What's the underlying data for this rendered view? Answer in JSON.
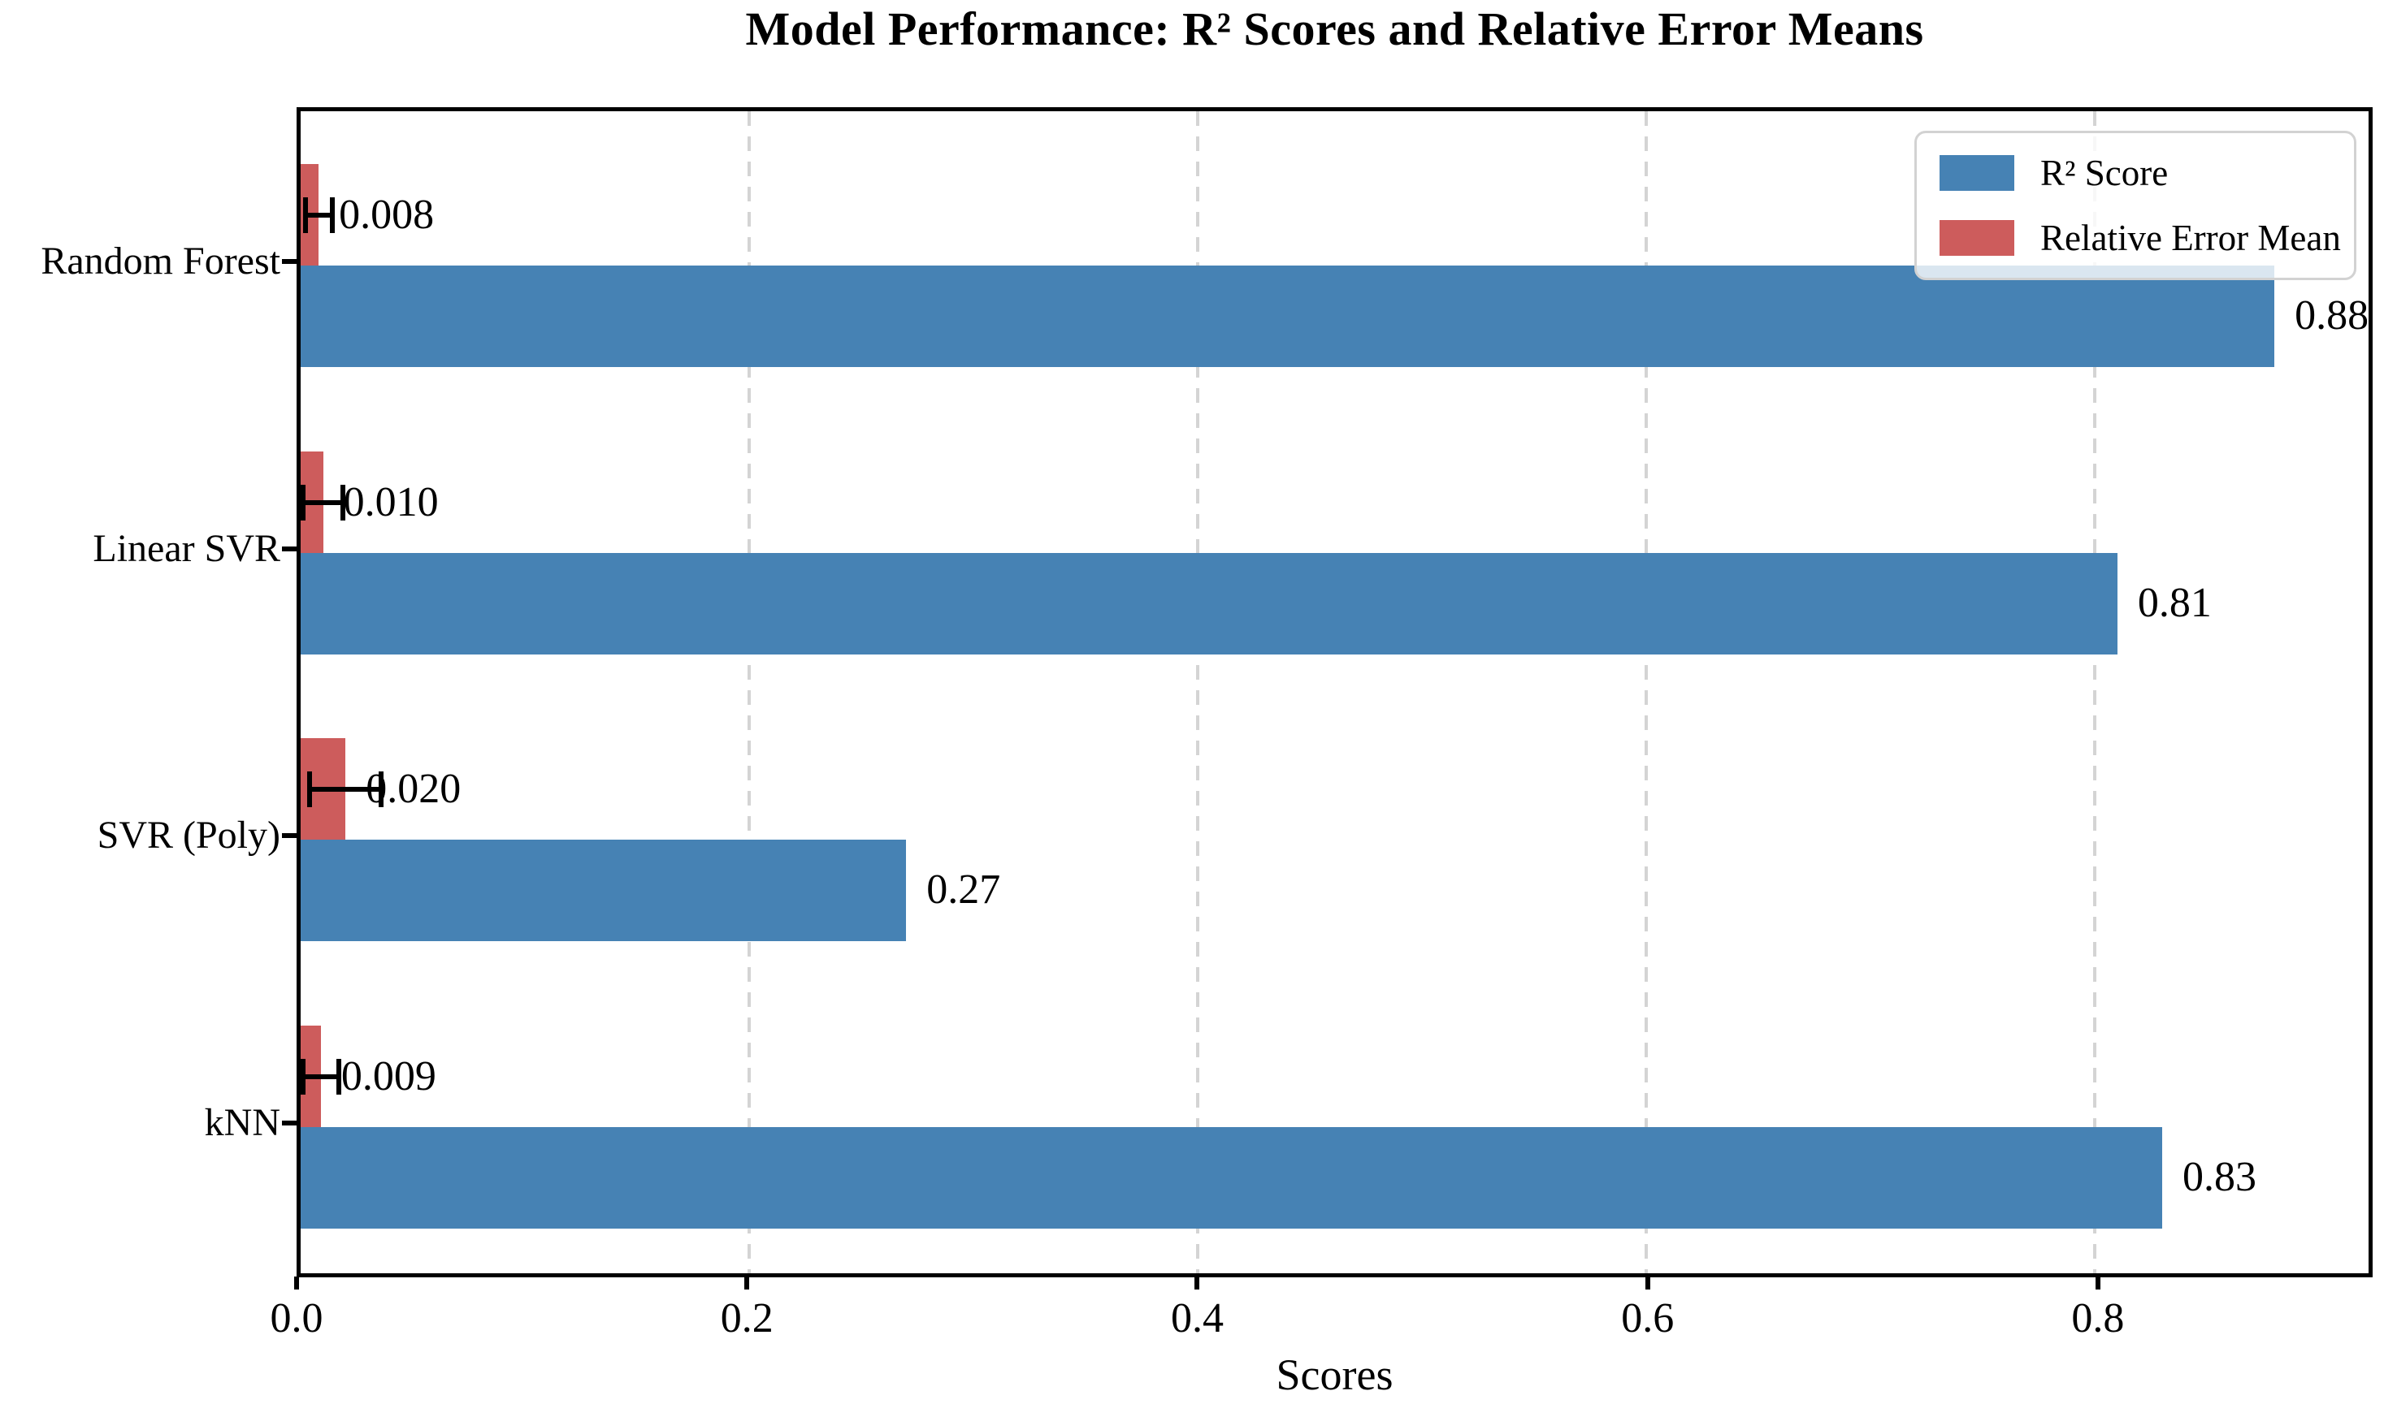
{
  "chart_data": {
    "type": "bar",
    "orientation": "horizontal",
    "title": "Model Performance: R² Scores and Relative Error Means",
    "xlabel": "Scores",
    "categories": [
      "Random Forest",
      "Linear SVR",
      "SVR (Poly)",
      "kNN"
    ],
    "series": [
      {
        "name": "R² Score",
        "color": "#4682B4",
        "values": [
          0.88,
          0.81,
          0.27,
          0.83
        ],
        "value_labels": [
          "0.88",
          "0.81",
          "0.27",
          "0.83"
        ]
      },
      {
        "name": "Relative Error Mean",
        "color": "#CD5C5C",
        "values": [
          0.008,
          0.01,
          0.02,
          0.009
        ],
        "value_labels": [
          "0.008",
          "0.010",
          "0.020",
          "0.009"
        ],
        "error_bars": [
          0.006,
          0.009,
          0.016,
          0.008
        ]
      }
    ],
    "xlim": [
      0,
      0.922
    ],
    "xticks": [
      {
        "value": 0.0,
        "label": "0.0"
      },
      {
        "value": 0.2,
        "label": "0.2"
      },
      {
        "value": 0.4,
        "label": "0.4"
      },
      {
        "value": 0.6,
        "label": "0.6"
      },
      {
        "value": 0.8,
        "label": "0.8"
      }
    ],
    "grid": {
      "axis": "x",
      "style": "dashed",
      "color": "#d4d4d4"
    },
    "legend": {
      "position": "upper right",
      "entries": [
        "R² Score",
        "Relative Error Mean"
      ]
    },
    "error_bar_color": "#000000"
  }
}
